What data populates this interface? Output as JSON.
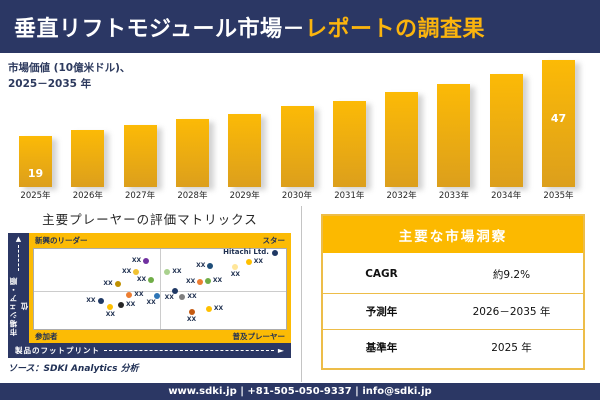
{
  "header": {
    "title_main": "垂直リフトモジュール市場－",
    "title_accent": "レポートの調査果"
  },
  "chart_data": [
    {
      "type": "bar",
      "title": "市場価値 (10億米ドル)、2025－2035 年",
      "subtitle_line1": "市場価値 (10億米ドル)、",
      "subtitle_line2": "2025－2035 年",
      "categories": [
        "2025年",
        "2026年",
        "2027年",
        "2028年",
        "2029年",
        "2030年",
        "2031年",
        "2032年",
        "2033年",
        "2034年",
        "2035年"
      ],
      "values": [
        19,
        21,
        23,
        25,
        27,
        30,
        32,
        35,
        38,
        42,
        47
      ],
      "value_labels_shown": {
        "2025年": "19",
        "2035年": "47"
      },
      "ylim": [
        0,
        50
      ],
      "grid": false,
      "bar_color_top": "#FCBA06",
      "bar_color_bottom": "#DC9F1C"
    },
    {
      "type": "scatter",
      "title": "主要プレーヤーの評価マトリックス",
      "xlabel": "製品のフットプリント",
      "ylabel": "市場シェア・順位",
      "quadrants": {
        "top_left": "新興のリーダー",
        "top_right": "スター",
        "bottom_left": "参加者",
        "bottom_right": "普及プレーヤー"
      },
      "axis_range": [
        0,
        100
      ],
      "points": [
        {
          "x": 44.5,
          "y": 15.3,
          "color": "#7030A0",
          "label": "XX",
          "label_pos": "left"
        },
        {
          "x": 40.6,
          "y": 28.6,
          "color": "#F1C232",
          "label": "XX",
          "label_pos": "left"
        },
        {
          "x": 46.5,
          "y": 38.9,
          "color": "#70AD47",
          "label": "XX",
          "label_pos": "left"
        },
        {
          "x": 33.2,
          "y": 43.4,
          "color": "#BF9000",
          "label": "XX",
          "label_pos": "left"
        },
        {
          "x": 37.8,
          "y": 57.8,
          "color": "#ED7D31",
          "label": "XX",
          "label_pos": "right"
        },
        {
          "x": 48.7,
          "y": 58.7,
          "color": "#2E75B6",
          "label": "XX",
          "label_pos": "below-left"
        },
        {
          "x": 26.4,
          "y": 64.7,
          "color": "#1F3864",
          "label": "XX",
          "label_pos": "left"
        },
        {
          "x": 34.5,
          "y": 70.2,
          "color": "#262626",
          "label": "XX",
          "label_pos": "right"
        },
        {
          "x": 30.3,
          "y": 72.7,
          "color": "#FFC000",
          "label": "XX",
          "label_pos": "below"
        },
        {
          "x": 95.6,
          "y": 5.2,
          "color": "#1F3864",
          "label": "Hitachi Ltd.",
          "label_pos": "company"
        },
        {
          "x": 85.2,
          "y": 15.7,
          "color": "#FFC000",
          "label": "XX",
          "label_pos": "right"
        },
        {
          "x": 70.0,
          "y": 21.7,
          "color": "#1F4E79",
          "label": "XX",
          "label_pos": "left"
        },
        {
          "x": 79.9,
          "y": 22.5,
          "color": "#FFE699",
          "label": "XX",
          "label_pos": "below"
        },
        {
          "x": 52.9,
          "y": 28.6,
          "color": "#A9D18E",
          "label": "XX",
          "label_pos": "right"
        },
        {
          "x": 66.0,
          "y": 41.8,
          "color": "#ED7D31",
          "label": "XX",
          "label_pos": "left"
        },
        {
          "x": 69.0,
          "y": 39.4,
          "color": "#70AD47",
          "label": "XX",
          "label_pos": "right"
        },
        {
          "x": 55.9,
          "y": 52.4,
          "color": "#1F3864",
          "label": "XX",
          "label_pos": "below-left"
        },
        {
          "x": 58.9,
          "y": 59.9,
          "color": "#808080",
          "label": "XX",
          "label_pos": "right"
        },
        {
          "x": 69.4,
          "y": 75.5,
          "color": "#FFC000",
          "label": "XX",
          "label_pos": "right"
        },
        {
          "x": 62.5,
          "y": 78.7,
          "color": "#C55A11",
          "label": "XX",
          "label_pos": "below"
        }
      ]
    }
  ],
  "insights": {
    "title": "主要な市場洞察",
    "rows": [
      {
        "label": "CAGR",
        "value": "約9.2%"
      },
      {
        "label": "予測年",
        "value": "2026－2035 年"
      },
      {
        "label": "基準年",
        "value": "2025 年"
      }
    ]
  },
  "source": "ソース：SDKI Analytics 分析",
  "footer": "www.sdki.jp | +81-505-050-9337 | info@sdki.jp",
  "colors": {
    "navy": "#2B3764",
    "gold": "#FCBB05",
    "accent_text": "#FBB40D",
    "table_border": "#EDBD49",
    "table_header_bg": "#FCB900",
    "divider": "#C4C4C4"
  }
}
